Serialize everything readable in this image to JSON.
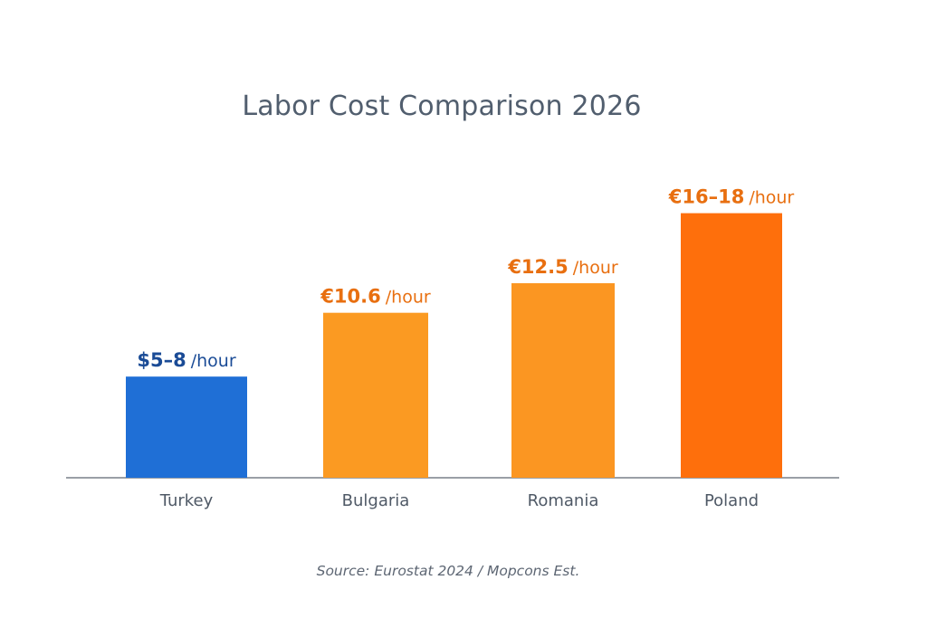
{
  "chart_data": {
    "type": "bar",
    "title": "Labor Cost Comparison 2026",
    "categories": [
      "Turkey",
      "Bulgaria",
      "Romania",
      "Poland"
    ],
    "values": [
      6.5,
      10.6,
      12.5,
      17
    ],
    "ranges": [
      [
        5,
        8
      ],
      null,
      null,
      [
        16,
        18
      ]
    ],
    "data_labels": [
      {
        "value": "$5–8",
        "unit": "/hour"
      },
      {
        "value": "€10.6",
        "unit": "/hour"
      },
      {
        "value": "€12.5",
        "unit": "/hour"
      },
      {
        "value": "€16–18",
        "unit": "/hour"
      }
    ],
    "colors": [
      "#1f6fd6",
      "#fb9a22",
      "#fb9622",
      "#fe6f0c"
    ],
    "label_colors": [
      "#1a4b96",
      "#e86f10",
      "#e86f10",
      "#e86f10"
    ],
    "xlabel": "",
    "ylabel": "",
    "ylim": [
      0,
      17
    ],
    "grid": false,
    "legend": "none"
  },
  "source": "Source: Eurostat 2024 / Mopcons Est."
}
